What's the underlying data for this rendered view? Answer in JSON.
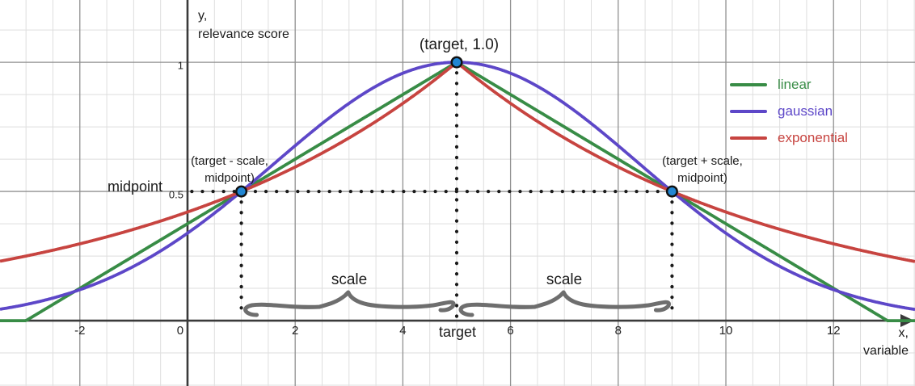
{
  "chart_data": {
    "type": "line",
    "title": "",
    "x_axis": {
      "label_lines": [
        "x,",
        "variable"
      ],
      "ticks": [
        -2,
        0,
        2,
        4,
        6,
        8,
        10,
        12
      ],
      "range": [
        -3.483,
        13.513
      ],
      "minor_step": 0.5,
      "major_step": 2,
      "grid": true
    },
    "y_axis": {
      "label_lines": [
        "y,",
        "relevance score"
      ],
      "ticks": [
        {
          "v": 0.5,
          "label": "0.5"
        },
        {
          "v": 1,
          "label": "1"
        }
      ],
      "range": [
        -0.253,
        1.241
      ],
      "minor_step": 0.125,
      "major_step": 0.5,
      "grid": true
    },
    "params": {
      "target": 5,
      "scale": 4,
      "midpoint": 0.5
    },
    "series": [
      {
        "name": "linear",
        "color": "#388c46",
        "formula": "max(0, 1 - |x - target| / (2*scale))"
      },
      {
        "name": "gaussian",
        "color": "#5d47c8",
        "formula": "2^(-((x - target) / scale)^2)"
      },
      {
        "name": "exponential",
        "color": "#c74440",
        "formula": "2^(-|x - target| / scale)"
      }
    ],
    "key_points": [
      {
        "x": 1,
        "y": 0.5
      },
      {
        "x": 5,
        "y": 1.0
      },
      {
        "x": 9,
        "y": 0.5
      }
    ],
    "point_color": "#2186d3",
    "guide_color": "#1a1a1a",
    "guides": [
      {
        "type": "h",
        "y": 0.5,
        "x1": 0.08,
        "x2": 9
      },
      {
        "type": "v",
        "x": 1,
        "y1": 0.5,
        "y2": 0.02
      },
      {
        "type": "v",
        "x": 5,
        "y1": 1.0,
        "y2": 0.012
      },
      {
        "type": "v",
        "x": 9,
        "y1": 0.5,
        "y2": 0.02
      }
    ],
    "braces": [
      {
        "from": 1,
        "to": 5,
        "label": "scale"
      },
      {
        "from": 5,
        "to": 9,
        "label": "scale"
      }
    ],
    "legend_position": "top-right"
  },
  "annotations": {
    "peak_point": "(target, 1.0)",
    "left_point": [
      "(target - scale,",
      "midpoint)"
    ],
    "right_point": [
      "(target + scale,",
      "midpoint)"
    ],
    "midpoint_axis_label": "midpoint",
    "target_axis_label": "target",
    "scale_labels": [
      "scale",
      "scale"
    ]
  }
}
